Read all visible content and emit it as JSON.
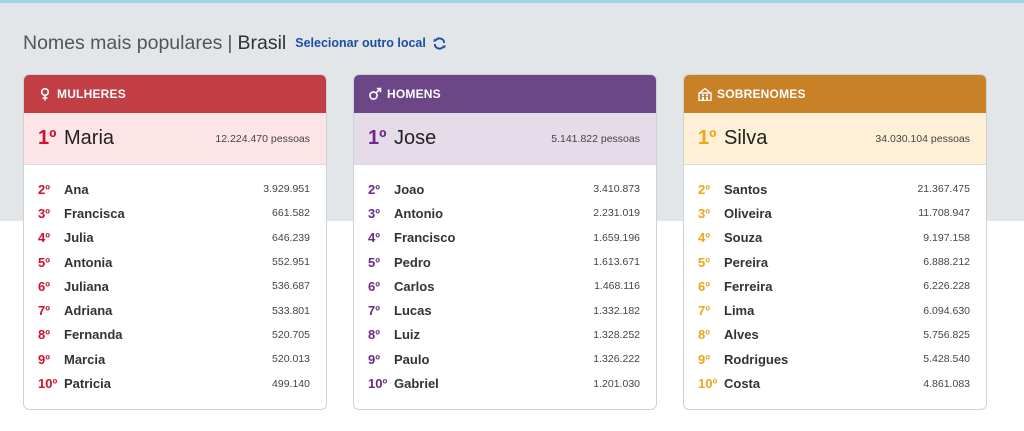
{
  "header": {
    "title": "Nomes mais populares",
    "separator": "|",
    "country": "Brasil",
    "change_location": "Selecionar outro local",
    "refresh_icon": "refresh-icon"
  },
  "colors": {
    "women": "#c13e44",
    "men": "#6c4686",
    "surnames": "#c98128"
  },
  "cards": [
    {
      "title": "MULHERES",
      "icon": "female-icon",
      "top": {
        "rank": "1º",
        "name": "Maria",
        "count": "12.224.470 pessoas"
      },
      "rows": [
        {
          "rank": "2º",
          "name": "Ana",
          "count": "3.929.951"
        },
        {
          "rank": "3º",
          "name": "Francisca",
          "count": "661.582"
        },
        {
          "rank": "4º",
          "name": "Julia",
          "count": "646.239"
        },
        {
          "rank": "5º",
          "name": "Antonia",
          "count": "552.951"
        },
        {
          "rank": "6º",
          "name": "Juliana",
          "count": "536.687"
        },
        {
          "rank": "7º",
          "name": "Adriana",
          "count": "533.801"
        },
        {
          "rank": "8º",
          "name": "Fernanda",
          "count": "520.705"
        },
        {
          "rank": "9º",
          "name": "Marcia",
          "count": "520.013"
        },
        {
          "rank": "10º",
          "name": "Patricia",
          "count": "499.140"
        }
      ]
    },
    {
      "title": "HOMENS",
      "icon": "male-icon",
      "top": {
        "rank": "1º",
        "name": "Jose",
        "count": "5.141.822 pessoas"
      },
      "rows": [
        {
          "rank": "2º",
          "name": "Joao",
          "count": "3.410.873"
        },
        {
          "rank": "3º",
          "name": "Antonio",
          "count": "2.231.019"
        },
        {
          "rank": "4º",
          "name": "Francisco",
          "count": "1.659.196"
        },
        {
          "rank": "5º",
          "name": "Pedro",
          "count": "1.613.671"
        },
        {
          "rank": "6º",
          "name": "Carlos",
          "count": "1.468.116"
        },
        {
          "rank": "7º",
          "name": "Lucas",
          "count": "1.332.182"
        },
        {
          "rank": "8º",
          "name": "Luiz",
          "count": "1.328.252"
        },
        {
          "rank": "9º",
          "name": "Paulo",
          "count": "1.326.222"
        },
        {
          "rank": "10º",
          "name": "Gabriel",
          "count": "1.201.030"
        }
      ]
    },
    {
      "title": "SOBRENOMES",
      "icon": "family-icon",
      "top": {
        "rank": "1º",
        "name": "Silva",
        "count": "34.030.104 pessoas"
      },
      "rows": [
        {
          "rank": "2º",
          "name": "Santos",
          "count": "21.367.475"
        },
        {
          "rank": "3º",
          "name": "Oliveira",
          "count": "11.708.947"
        },
        {
          "rank": "4º",
          "name": "Souza",
          "count": "9.197.158"
        },
        {
          "rank": "5º",
          "name": "Pereira",
          "count": "6.888.212"
        },
        {
          "rank": "6º",
          "name": "Ferreira",
          "count": "6.226.228"
        },
        {
          "rank": "7º",
          "name": "Lima",
          "count": "6.094.630"
        },
        {
          "rank": "8º",
          "name": "Alves",
          "count": "5.756.825"
        },
        {
          "rank": "9º",
          "name": "Rodrigues",
          "count": "5.428.540"
        },
        {
          "rank": "10º",
          "name": "Costa",
          "count": "4.861.083"
        }
      ]
    }
  ]
}
